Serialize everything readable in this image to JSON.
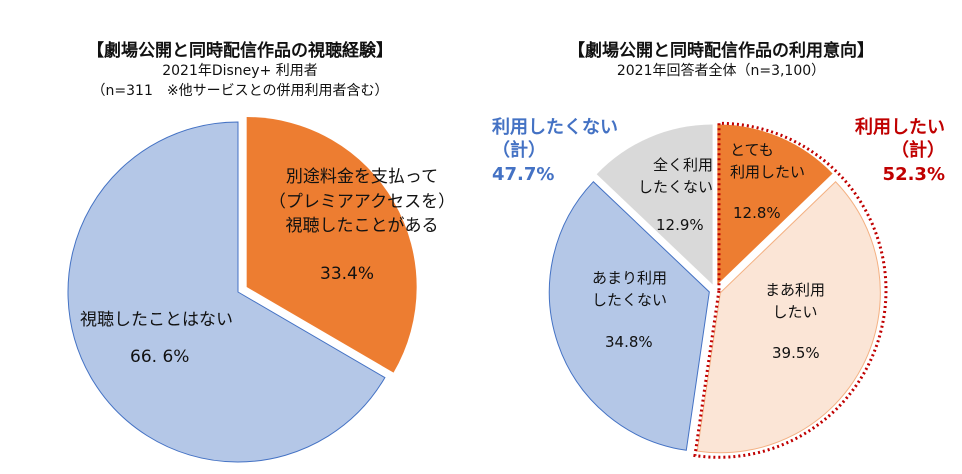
{
  "chart_data": [
    {
      "type": "pie",
      "title": "【劇場公開と同時配信作品の視聴経験】",
      "subtitle": [
        "2021年Disney+ 利用者",
        "（n=311　※他サービスとの併用利用者含む）"
      ],
      "slices": [
        {
          "label": "別途料金を支払って\n（プレミアアクセスを）\n視聴したことがある",
          "value": 33.4,
          "value_label": "33.4%",
          "color": "#ED7D31",
          "exploded": true
        },
        {
          "label": "視聴したことはない",
          "value": 66.6,
          "value_label": "66. 6%",
          "color": "#B4C7E7",
          "exploded": false
        }
      ]
    },
    {
      "type": "pie",
      "title": "【劇場公開と同時配信作品の利用意向】",
      "subtitle": [
        "2021年回答者全体（n=3,100）"
      ],
      "slices": [
        {
          "label": "とても\n利用したい",
          "value": 12.8,
          "value_label": "12.8%",
          "color": "#ED7D31"
        },
        {
          "label": "まあ利用\nしたい",
          "value": 39.5,
          "value_label": "39.5%",
          "color": "#FBE5D6"
        },
        {
          "label": "あまり利用\nしたくない",
          "value": 34.8,
          "value_label": "34.8%",
          "color": "#B4C7E7"
        },
        {
          "label": "全く利用\nしたくない",
          "value": 12.9,
          "value_label": "12.9%",
          "color": "#D9D9D9"
        }
      ],
      "groups": [
        {
          "label": "利用したくない\n（計）",
          "value_label": "47.7%",
          "color": "#4472C4"
        },
        {
          "label": "利用したい\n（計）",
          "value_label": "52.3%",
          "color": "#C00000"
        }
      ]
    }
  ]
}
